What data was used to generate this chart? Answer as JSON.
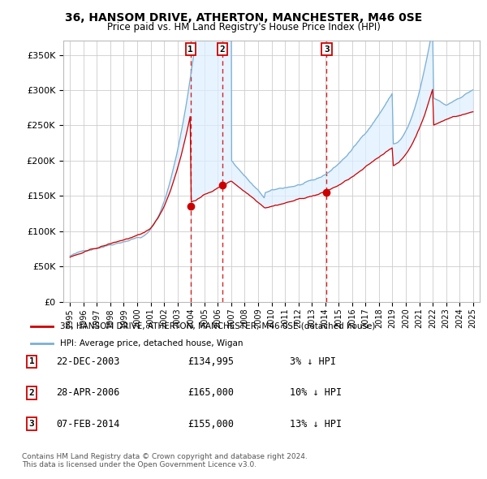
{
  "title": "36, HANSOM DRIVE, ATHERTON, MANCHESTER, M46 0SE",
  "subtitle": "Price paid vs. HM Land Registry's House Price Index (HPI)",
  "legend_line1": "36, HANSOM DRIVE, ATHERTON, MANCHESTER, M46 0SE (detached house)",
  "legend_line2": "HPI: Average price, detached house, Wigan",
  "sale_color": "#cc0000",
  "hpi_color": "#7ab0d4",
  "fill_color": "#ddeeff",
  "transactions": [
    {
      "num": 1,
      "date": "22-DEC-2003",
      "price": 134995,
      "pct": "3%",
      "x": 2003.97
    },
    {
      "num": 2,
      "date": "28-APR-2006",
      "price": 165000,
      "pct": "10%",
      "x": 2006.33
    },
    {
      "num": 3,
      "date": "07-FEB-2014",
      "price": 155000,
      "pct": "13%",
      "x": 2014.1
    }
  ],
  "footer": "Contains HM Land Registry data © Crown copyright and database right 2024.\nThis data is licensed under the Open Government Licence v3.0.",
  "ylim": [
    0,
    370000
  ],
  "xlim": [
    1994.5,
    2025.5
  ],
  "yticks": [
    0,
    50000,
    100000,
    150000,
    200000,
    250000,
    300000,
    350000
  ],
  "ytick_labels": [
    "£0",
    "£50K",
    "£100K",
    "£150K",
    "£200K",
    "£250K",
    "£300K",
    "£350K"
  ],
  "xticks": [
    1995,
    1996,
    1997,
    1998,
    1999,
    2000,
    2001,
    2002,
    2003,
    2004,
    2005,
    2006,
    2007,
    2008,
    2009,
    2010,
    2011,
    2012,
    2013,
    2014,
    2015,
    2016,
    2017,
    2018,
    2019,
    2020,
    2021,
    2022,
    2023,
    2024,
    2025
  ],
  "background_color": "#ffffff",
  "grid_color": "#cccccc"
}
